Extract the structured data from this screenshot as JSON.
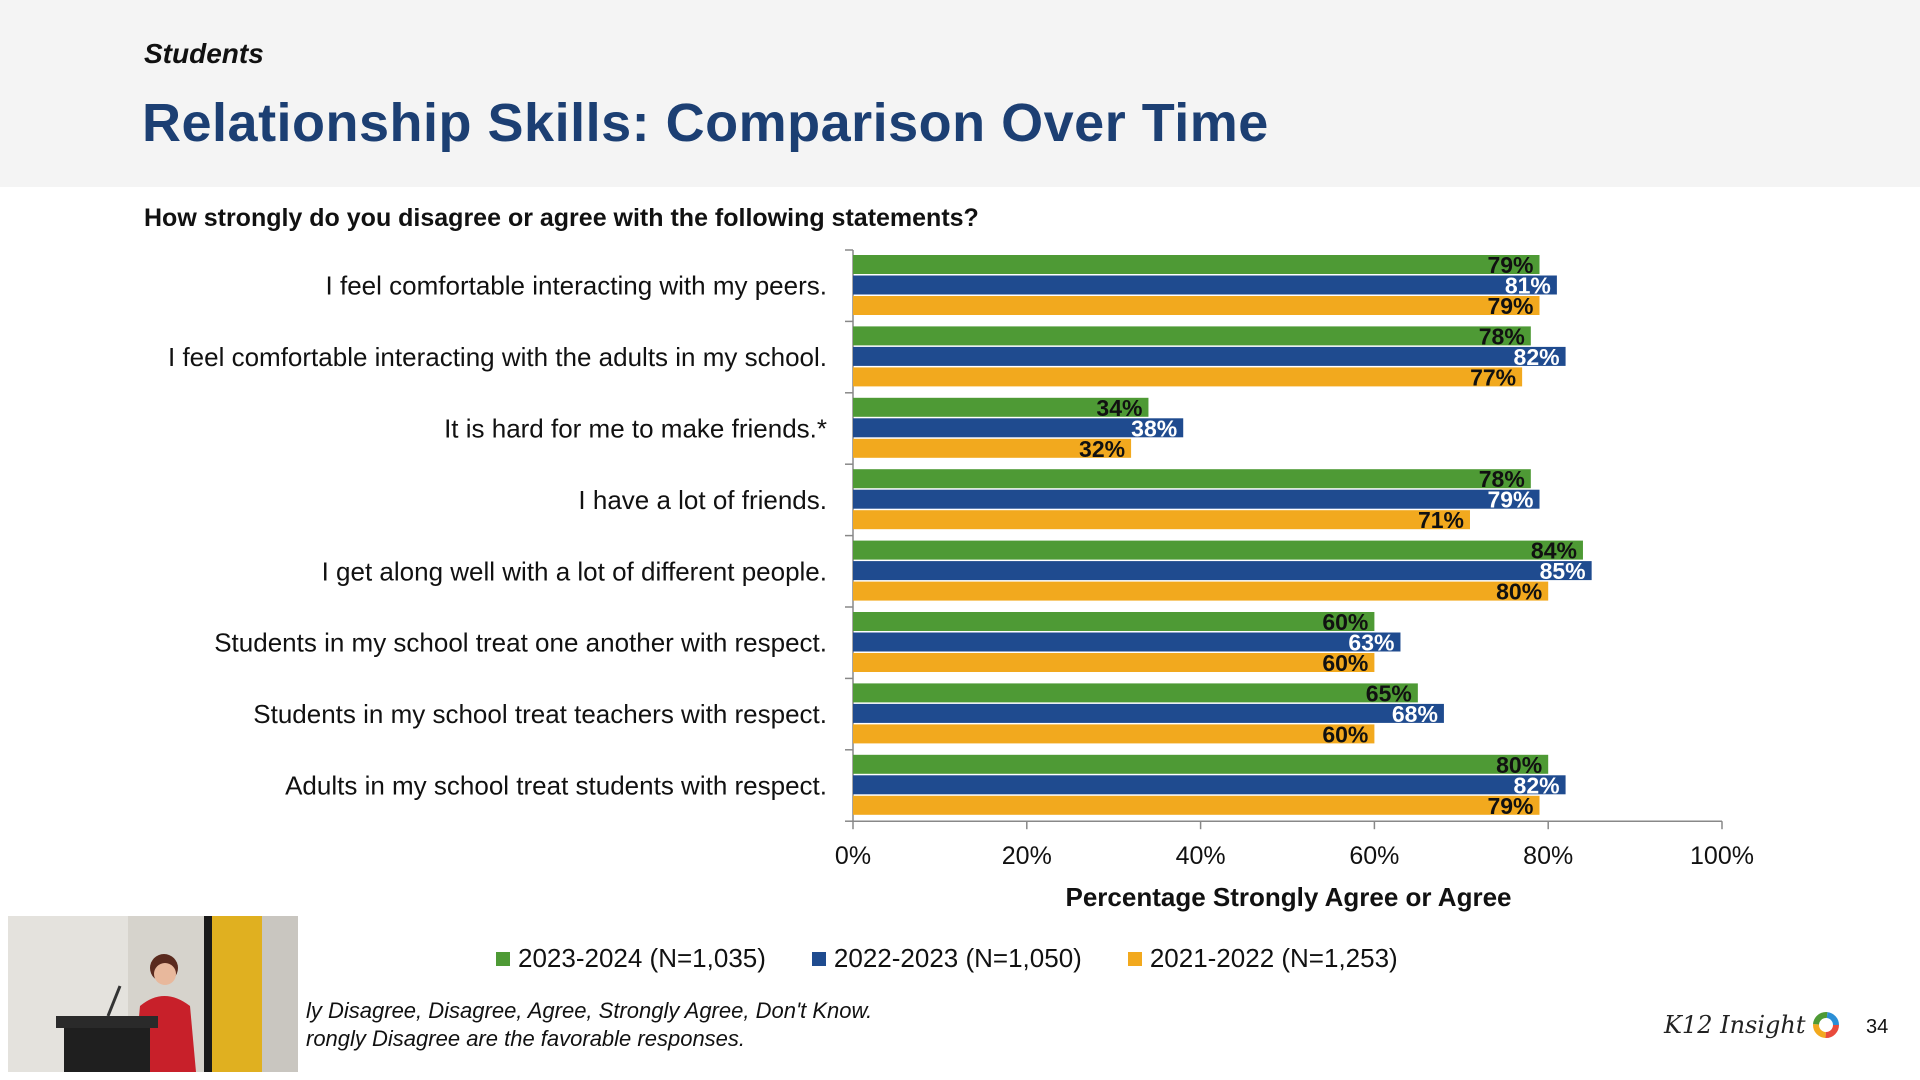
{
  "header": {
    "section": "Students",
    "title": "Relationship Skills: Comparison Over Time"
  },
  "question": "How strongly do you disagree or agree with the following statements?",
  "chart_data": {
    "type": "bar",
    "orientation": "horizontal",
    "categories": [
      "I feel comfortable interacting with my peers.",
      "I feel comfortable interacting with the adults in my school.",
      "It is hard for me to make friends.*",
      "I have a lot of friends.",
      "I get along well with a lot of different people.",
      "Students in my school treat one another with respect.",
      "Students in my school treat teachers with respect.",
      "Adults in my school treat students with respect."
    ],
    "series": [
      {
        "name": "2023-2024 (N=1,035)",
        "color": "#4e9a35",
        "label_color": "#111111",
        "values": [
          79,
          78,
          34,
          78,
          84,
          60,
          65,
          80
        ]
      },
      {
        "name": "2022-2023 (N=1,050)",
        "color": "#1f4b8f",
        "label_color": "#ffffff",
        "values": [
          81,
          82,
          38,
          79,
          85,
          63,
          68,
          82
        ]
      },
      {
        "name": "2021-2022 (N=1,253)",
        "color": "#f2a91e",
        "label_color": "#111111",
        "values": [
          79,
          77,
          32,
          71,
          80,
          60,
          60,
          79
        ]
      }
    ],
    "xlabel": "Percentage Strongly Agree or Agree",
    "xlim": [
      0,
      100
    ],
    "ticks": [
      "0%",
      "20%",
      "40%",
      "60%",
      "80%",
      "100%"
    ],
    "legend_position": "bottom",
    "grid": false
  },
  "footnotes": [
    "ly Disagree, Disagree, Agree, Strongly Agree, Don't Know.",
    "rongly Disagree are the favorable responses."
  ],
  "logo": {
    "text": "K12 Insight",
    "icon": "ring-logo-icon"
  },
  "page_number": "34",
  "video": {
    "icon": "presenter-video-thumbnail"
  }
}
